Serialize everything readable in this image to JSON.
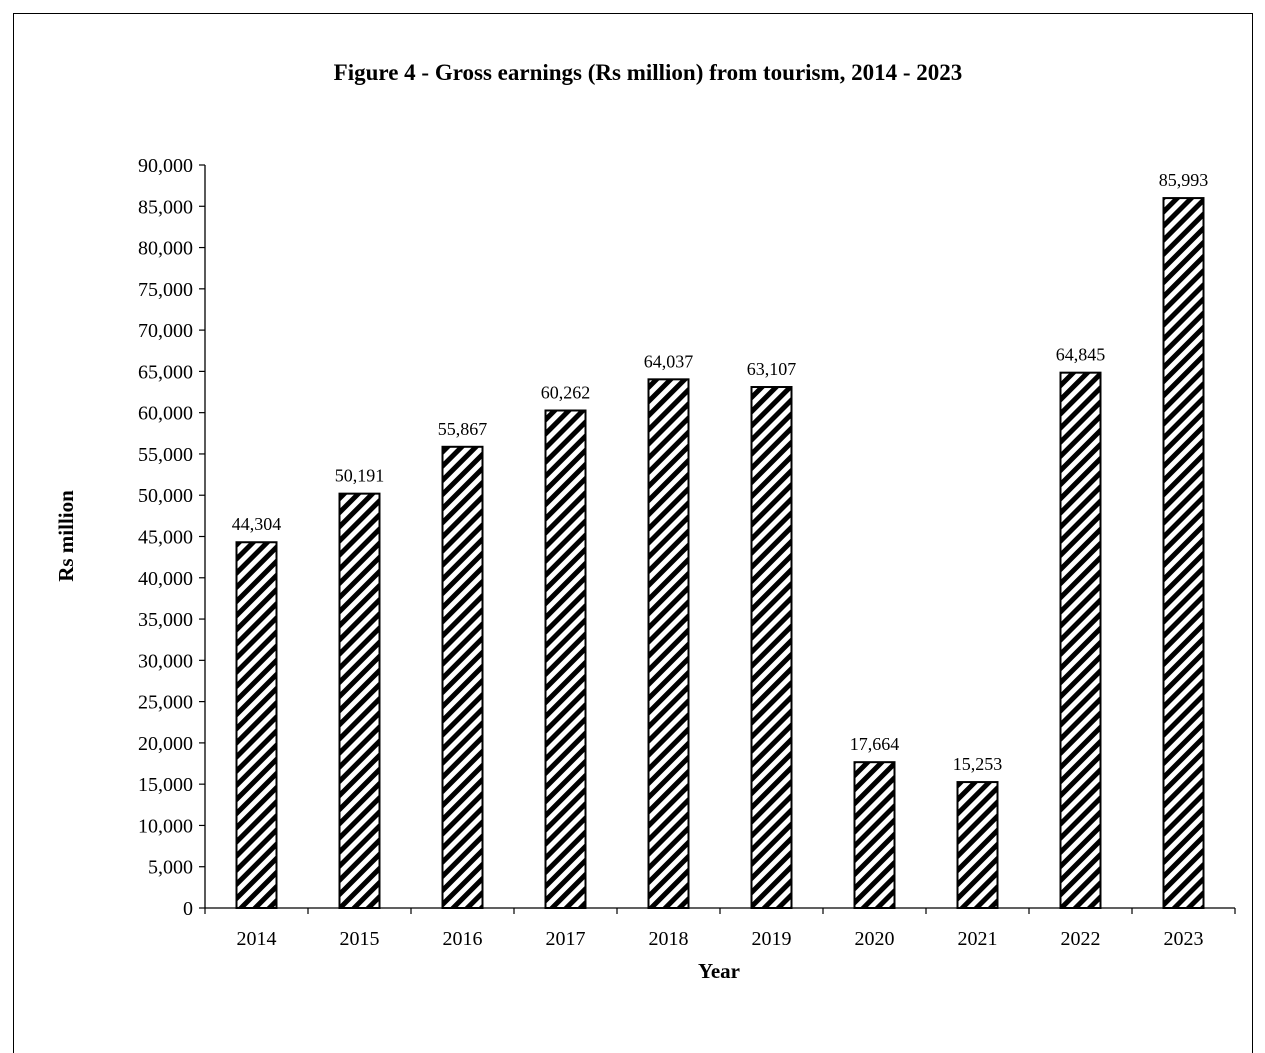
{
  "chart_data": {
    "type": "bar",
    "title": "Figure 4 - Gross earnings (Rs million) from tourism, 2014 - 2023",
    "xlabel": "Year",
    "ylabel": "Rs million",
    "categories": [
      "2014",
      "2015",
      "2016",
      "2017",
      "2018",
      "2019",
      "2020",
      "2021",
      "2022",
      "2023"
    ],
    "values": [
      44304,
      50191,
      55867,
      60262,
      64037,
      63107,
      17664,
      15253,
      64845,
      85993
    ],
    "data_labels": [
      "44,304",
      "50,191",
      "55,867",
      "60,262",
      "64,037",
      "63,107",
      "17,664",
      "15,253",
      "64,845",
      "85,993"
    ],
    "ylim": [
      0,
      90000
    ],
    "ytick_step": 5000,
    "yticks": [
      "0",
      "5,000",
      "10,000",
      "15,000",
      "20,000",
      "25,000",
      "30,000",
      "35,000",
      "40,000",
      "45,000",
      "50,000",
      "55,000",
      "60,000",
      "65,000",
      "70,000",
      "75,000",
      "80,000",
      "85,000",
      "90,000"
    ],
    "grid": false,
    "legend": "none",
    "bar_fill": "diagonal hatch",
    "colors": {
      "bar_stroke": "#000000",
      "hatch": "#000000",
      "background": "#ffffff"
    }
  }
}
